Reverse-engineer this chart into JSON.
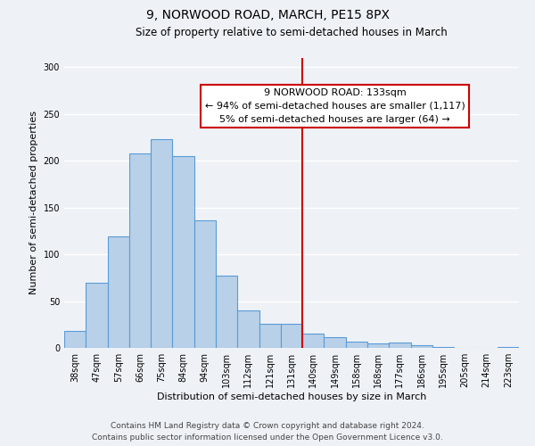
{
  "title": "9, NORWOOD ROAD, MARCH, PE15 8PX",
  "subtitle": "Size of property relative to semi-detached houses in March",
  "xlabel": "Distribution of semi-detached houses by size in March",
  "ylabel": "Number of semi-detached properties",
  "bar_labels": [
    "38sqm",
    "47sqm",
    "57sqm",
    "66sqm",
    "75sqm",
    "84sqm",
    "94sqm",
    "103sqm",
    "112sqm",
    "121sqm",
    "131sqm",
    "140sqm",
    "149sqm",
    "158sqm",
    "168sqm",
    "177sqm",
    "186sqm",
    "195sqm",
    "205sqm",
    "214sqm",
    "223sqm"
  ],
  "bar_values": [
    18,
    70,
    119,
    208,
    223,
    205,
    136,
    77,
    40,
    26,
    26,
    15,
    11,
    7,
    5,
    6,
    3,
    1,
    0,
    0,
    1
  ],
  "bar_color": "#b8d0e8",
  "bar_edge_color": "#5b9bd5",
  "vline_x": 10.5,
  "vline_color": "#cc0000",
  "annotation_title": "9 NORWOOD ROAD: 133sqm",
  "annotation_line1": "← 94% of semi-detached houses are smaller (1,117)",
  "annotation_line2": "5% of semi-detached houses are larger (64) →",
  "annotation_box_color": "#ffffff",
  "annotation_box_edge": "#cc0000",
  "ylim": [
    0,
    310
  ],
  "yticks": [
    0,
    50,
    100,
    150,
    200,
    250,
    300
  ],
  "footer_line1": "Contains HM Land Registry data © Crown copyright and database right 2024.",
  "footer_line2": "Contains public sector information licensed under the Open Government Licence v3.0.",
  "bg_color": "#eef2f7",
  "grid_color": "#ffffff",
  "title_fontsize": 10,
  "subtitle_fontsize": 8.5,
  "axis_label_fontsize": 8,
  "tick_fontsize": 7,
  "annotation_fontsize": 8,
  "footer_fontsize": 6.5
}
